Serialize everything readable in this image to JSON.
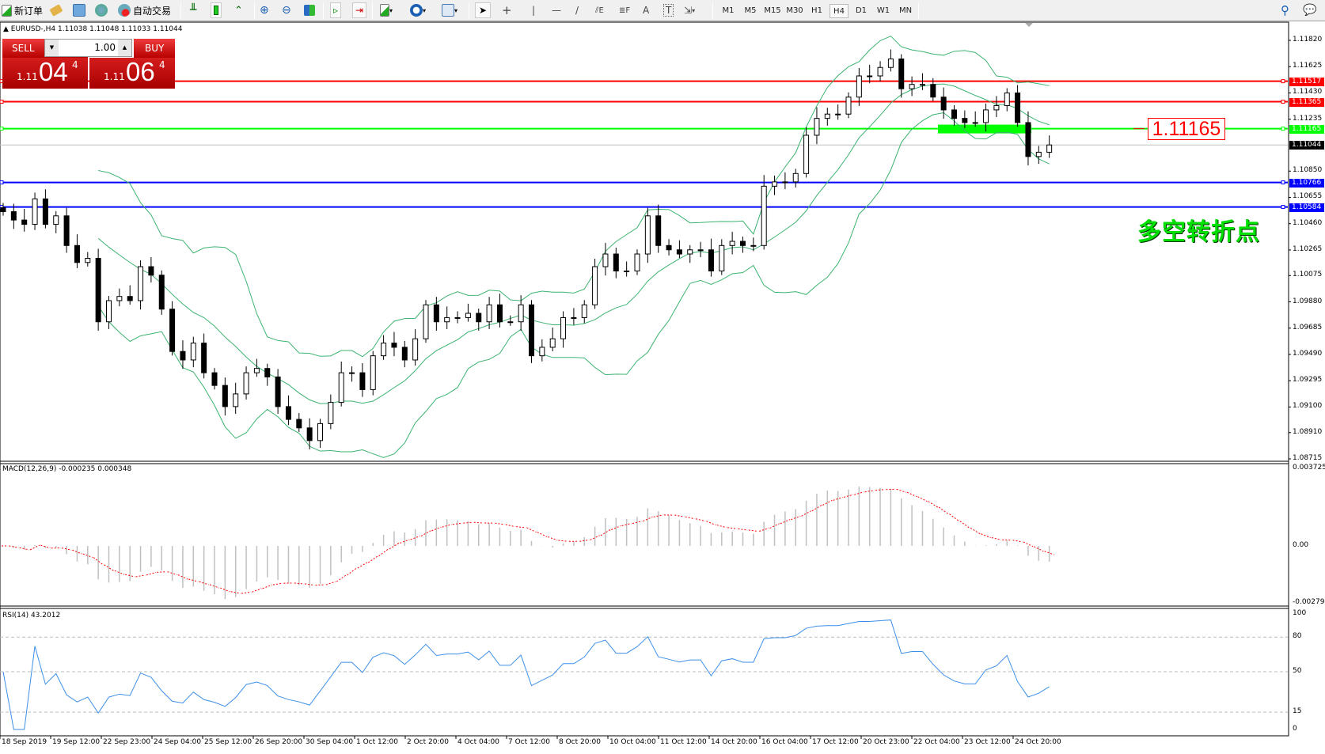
{
  "toolbar": {
    "new_order": "新订单",
    "auto_trade": "自动交易",
    "timeframes": [
      "M1",
      "M5",
      "M15",
      "M30",
      "H1",
      "H4",
      "D1",
      "W1",
      "MN"
    ],
    "selected_timeframe": "H4",
    "icons": [
      "new-order-icon",
      "navigator-icon",
      "terminal-icon",
      "signals-icon",
      "auto-trade-icon",
      "bar-chart-icon",
      "candlestick-icon",
      "line-chart-icon",
      "zoom-in-icon",
      "zoom-out-icon",
      "tile-windows-icon",
      "auto-scroll-icon",
      "chart-shift-icon",
      "indicators-icon",
      "periods-icon",
      "templates-icon",
      "cursor-icon",
      "crosshair-icon",
      "vertical-line-icon",
      "horizontal-line-icon",
      "trendline-icon",
      "fibonacci-channel-icon",
      "fibonacci-icon",
      "text-icon",
      "text-label-icon",
      "arrows-icon",
      "search-icon",
      "chat-icon"
    ]
  },
  "chart": {
    "symbol_info": "EURUSD-,H4  1.11038 1.11048 1.11033 1.11044",
    "trade_panel": {
      "sell": "SELL",
      "buy": "BUY",
      "lot": "1.00",
      "bid": {
        "prefix": "1.11",
        "big": "04",
        "sup": "4"
      },
      "ask": {
        "prefix": "1.11",
        "big": "06",
        "sup": "4"
      }
    },
    "hlines": [
      {
        "price": 1.11517,
        "label": "1.11517",
        "color": "#ff0000"
      },
      {
        "price": 1.11365,
        "label": "1.11365",
        "color": "#ff0000"
      },
      {
        "price": 1.11165,
        "label": "1.11165",
        "color": "#00ff00"
      },
      {
        "price": 1.10766,
        "label": "1.10766",
        "color": "#0000ff"
      },
      {
        "price": 1.10584,
        "label": "1.10584",
        "color": "#0000ff"
      }
    ],
    "bid_line": {
      "price": 1.11044,
      "label": "1.11044"
    },
    "annotation_box": "1.11165",
    "annotation_text": "多空转折点",
    "price_axis": [
      "1.11820",
      "1.11625",
      "1.11430",
      "1.11235",
      "1.10850",
      "1.10655",
      "1.10460",
      "1.10265",
      "1.10075",
      "1.09880",
      "1.09685",
      "1.09490",
      "1.09295",
      "1.09100",
      "1.08910",
      "1.08715"
    ]
  },
  "macd": {
    "label": "MACD(12,26,9) -0.000235 0.000348",
    "axis": [
      "0.003725",
      "0.00",
      "-0.002794"
    ]
  },
  "rsi": {
    "label": "RSI(14) 43.2012",
    "axis": [
      "100",
      "80",
      "50",
      "15",
      "0"
    ],
    "levels": [
      80,
      50,
      15
    ]
  },
  "time_axis": [
    "18 Sep 2019",
    "19 Sep 12:00",
    "22 Sep 23:00",
    "24 Sep 04:00",
    "25 Sep 12:00",
    "26 Sep 20:00",
    "30 Sep 04:00",
    "1 Oct 12:00",
    "2 Oct 20:00",
    "4 Oct 04:00",
    "7 Oct 12:00",
    "8 Oct 20:00",
    "10 Oct 04:00",
    "11 Oct 12:00",
    "14 Oct 20:00",
    "16 Oct 04:00",
    "17 Oct 12:00",
    "20 Oct 23:00",
    "22 Oct 04:00",
    "23 Oct 12:00",
    "24 Oct 20:00"
  ],
  "colors": {
    "bands": "#3cb371",
    "macd_hist": "#c0c0c0",
    "macd_signal": "#ff0000",
    "rsi": "#3d8fe8",
    "bull_body": "#ffffff",
    "bear_body": "#000000"
  },
  "chart_data": {
    "type": "candlestick",
    "symbol": "EURUSD",
    "timeframe": "H4",
    "ylim": [
      1.08703,
      1.11955
    ],
    "closes": [
      1.10549,
      1.10487,
      1.10455,
      1.10644,
      1.10455,
      1.10518,
      1.10298,
      1.10172,
      1.10203,
      1.09732,
      1.09889,
      1.0992,
      1.09889,
      1.10141,
      1.10078,
      1.09826,
      1.09512,
      1.09449,
      1.09574,
      1.09354,
      1.0926,
      1.09103,
      1.09197,
      1.09354,
      1.09386,
      1.09323,
      1.09103,
      1.09008,
      1.08945,
      1.08851,
      1.08977,
      1.09134,
      1.09354,
      1.09354,
      1.09229,
      1.0948,
      1.09574,
      1.09543,
      1.09449,
      1.09606,
      1.09858,
      1.09732,
      1.09763,
      1.09763,
      1.09795,
      1.09732,
      1.09858,
      1.09732,
      1.09732,
      1.09858,
      1.0948,
      1.09543,
      1.09606,
      1.09763,
      1.09763,
      1.09858,
      1.10141,
      1.10235,
      1.10109,
      1.10109,
      1.10235,
      1.10518,
      1.10298,
      1.10266,
      1.10235,
      1.10266,
      1.10266,
      1.10109,
      1.10298,
      1.10329,
      1.10298,
      1.10298,
      1.10738,
      1.1077,
      1.1077,
      1.10832,
      1.11116,
      1.11241,
      1.11273,
      1.11273,
      1.11399,
      1.11556,
      1.11556,
      1.11619,
      1.11682,
      1.11461,
      1.11493,
      1.11493,
      1.11399,
      1.11304,
      1.11241,
      1.1121,
      1.1121,
      1.11304,
      1.11336,
      1.1143,
      1.1121,
      1.10958,
      1.1099,
      1.11044
    ],
    "indicators": [
      "Bollinger Bands",
      "MACD(12,26,9)",
      "RSI(14)"
    ]
  }
}
